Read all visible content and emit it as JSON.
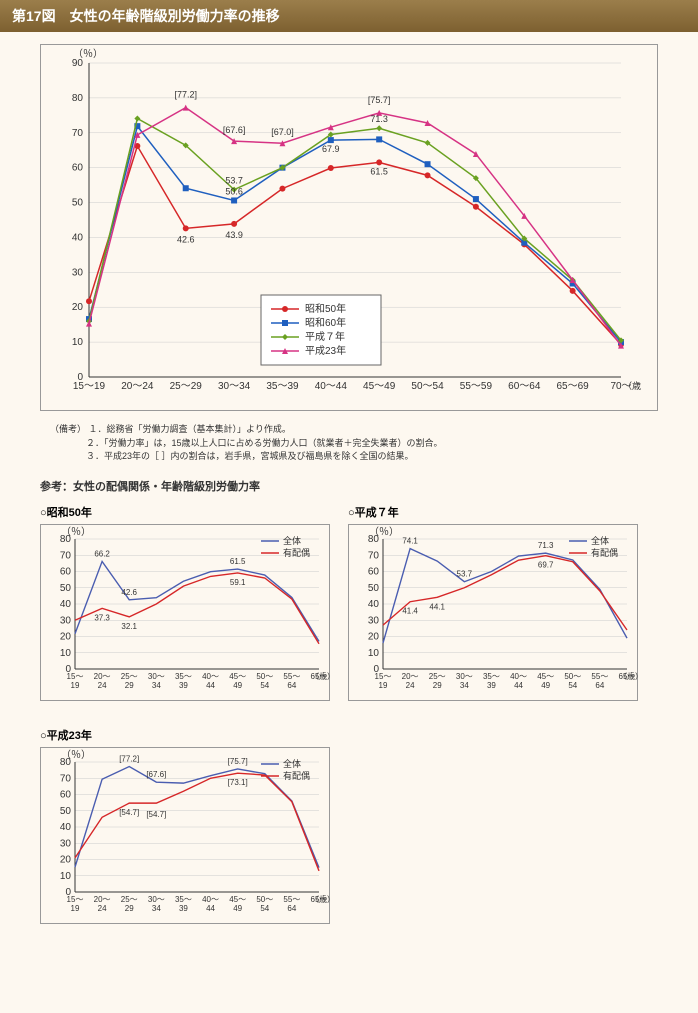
{
  "header_title": "第17図　女性の年齢階級別労働力率の推移",
  "main_chart": {
    "y_unit": "（％）",
    "x_unit": "（歳）",
    "ylim": [
      0,
      90
    ],
    "ytick_step": 10,
    "categories": [
      "15～19",
      "20～24",
      "25～29",
      "30～34",
      "35～39",
      "40～44",
      "45～49",
      "50～54",
      "55～59",
      "60～64",
      "65～69",
      "70～"
    ],
    "grid_color": "#cccccc",
    "background": "#fdf8f0",
    "series": [
      {
        "name": "昭和50年",
        "color": "#d62728",
        "marker": "circle",
        "values": [
          21.7,
          66.2,
          42.6,
          43.9,
          54.0,
          59.9,
          61.5,
          57.8,
          48.8,
          38.0,
          24.7,
          9.3
        ]
      },
      {
        "name": "昭和60年",
        "color": "#1f5fbf",
        "marker": "square",
        "values": [
          16.6,
          71.9,
          54.1,
          50.6,
          60.0,
          67.9,
          68.1,
          61.0,
          51.0,
          38.5,
          26.8,
          10.0
        ]
      },
      {
        "name": "平成７年",
        "color": "#6aa121",
        "marker": "diamond",
        "values": [
          16.0,
          74.1,
          66.4,
          53.7,
          60.0,
          69.5,
          71.3,
          67.1,
          57.0,
          39.7,
          27.8,
          10.5
        ]
      },
      {
        "name": "平成23年",
        "color": "#d63384",
        "marker": "triangle",
        "values": [
          15.3,
          69.4,
          77.2,
          67.6,
          67.0,
          71.6,
          75.7,
          72.8,
          63.9,
          46.2,
          27.8,
          9.0
        ]
      }
    ],
    "callouts": [
      {
        "cat": 2,
        "text": "[77.2]",
        "series": 3,
        "dy": -10
      },
      {
        "cat": 3,
        "text": "[67.6]",
        "series": 3,
        "dy": -8
      },
      {
        "cat": 4,
        "text": "[67.0]",
        "series": 3,
        "dy": -8
      },
      {
        "cat": 6,
        "text": "[75.7]",
        "series": 3,
        "dy": -10
      },
      {
        "cat": 2,
        "text": "42.6",
        "series": 0,
        "dy": 14
      },
      {
        "cat": 3,
        "text": "43.9",
        "series": 0,
        "dy": 14
      },
      {
        "cat": 3,
        "text": "50.6",
        "series": 1,
        "dy": -6
      },
      {
        "cat": 3,
        "text": "53.7",
        "series": 2,
        "dy": -6
      },
      {
        "cat": 5,
        "text": "67.9",
        "series": 1,
        "dy": 12
      },
      {
        "cat": 6,
        "text": "61.5",
        "series": 0,
        "dy": 12
      },
      {
        "cat": 6,
        "text": "71.3",
        "series": 2,
        "dy": -6
      }
    ]
  },
  "notes_label": "（備考）",
  "notes": [
    "１．総務省「労働力調査（基本集計）」より作成。",
    "２．「労働力率」は，15歳以上人口に占める労働力人口（就業者＋完全失業者）の割合。",
    "３．平成23年の［ ］内の割合は，岩手県，宮城県及び福島県を除く全国の結果。"
  ],
  "ref_title": "参考：女性の配偶関係・年齢階級別労働力率",
  "sub_common": {
    "y_unit": "（％）",
    "x_unit": "（歳）",
    "ylim": [
      0,
      80
    ],
    "ytick_step": 10,
    "categories": [
      "15～\n19",
      "20～\n24",
      "25～\n29",
      "30～\n34",
      "35～\n39",
      "40～\n44",
      "45～\n49",
      "50～\n54",
      "55～\n64",
      "65～"
    ],
    "grid_color": "#cccccc",
    "legend": [
      {
        "name": "全体",
        "color": "#4a5db0"
      },
      {
        "name": "有配偶",
        "color": "#d62728"
      }
    ]
  },
  "sub_charts": [
    {
      "title": "○昭和50年",
      "series": [
        {
          "name": "全体",
          "color": "#4a5db0",
          "values": [
            21.7,
            66.2,
            42.6,
            43.9,
            54.0,
            59.9,
            61.5,
            57.8,
            44.0,
            17.0
          ]
        },
        {
          "name": "有配偶",
          "color": "#d62728",
          "values": [
            30.0,
            37.3,
            32.1,
            40.0,
            51.0,
            57.0,
            59.1,
            56.0,
            43.0,
            15.5
          ]
        }
      ],
      "callouts": [
        {
          "cat": 1,
          "text": "66.2",
          "series": 0,
          "dy": -5
        },
        {
          "cat": 1,
          "text": "37.3",
          "series": 1,
          "dy": 12
        },
        {
          "cat": 2,
          "text": "42.6",
          "series": 0,
          "dy": -5
        },
        {
          "cat": 2,
          "text": "32.1",
          "series": 1,
          "dy": 12
        },
        {
          "cat": 6,
          "text": "61.5",
          "series": 0,
          "dy": -5
        },
        {
          "cat": 6,
          "text": "59.1",
          "series": 1,
          "dy": 12
        }
      ]
    },
    {
      "title": "○平成７年",
      "series": [
        {
          "name": "全体",
          "color": "#4a5db0",
          "values": [
            16.0,
            74.1,
            66.4,
            53.7,
            60.0,
            69.5,
            71.3,
            67.1,
            49.0,
            19.0
          ]
        },
        {
          "name": "有配偶",
          "color": "#d62728",
          "values": [
            27.0,
            41.4,
            44.1,
            50.0,
            58.0,
            67.0,
            69.7,
            66.0,
            48.0,
            24.0
          ]
        }
      ],
      "callouts": [
        {
          "cat": 1,
          "text": "74.1",
          "series": 0,
          "dy": -5
        },
        {
          "cat": 1,
          "text": "41.4",
          "series": 1,
          "dy": 12
        },
        {
          "cat": 3,
          "text": "53.7",
          "series": 0,
          "dy": -5
        },
        {
          "cat": 2,
          "text": "44.1",
          "series": 1,
          "dy": 12
        },
        {
          "cat": 6,
          "text": "71.3",
          "series": 0,
          "dy": -5
        },
        {
          "cat": 6,
          "text": "69.7",
          "series": 1,
          "dy": 12
        }
      ]
    },
    {
      "title": "○平成23年",
      "series": [
        {
          "name": "全体",
          "color": "#4a5db0",
          "values": [
            15.3,
            69.4,
            77.2,
            67.6,
            67.0,
            71.6,
            75.7,
            72.8,
            56.0,
            15.0
          ]
        },
        {
          "name": "有配偶",
          "color": "#d62728",
          "values": [
            21.0,
            46.0,
            54.7,
            54.7,
            62.0,
            70.0,
            73.1,
            72.0,
            55.5,
            13.0
          ]
        }
      ],
      "callouts": [
        {
          "cat": 2,
          "text": "[77.2]",
          "series": 0,
          "dy": -5
        },
        {
          "cat": 3,
          "text": "[67.6]",
          "series": 0,
          "dy": -5
        },
        {
          "cat": 6,
          "text": "[75.7]",
          "series": 0,
          "dy": -5
        },
        {
          "cat": 2,
          "text": "[54.7]",
          "series": 1,
          "dy": 12
        },
        {
          "cat": 3,
          "text": "[54.7]",
          "series": 1,
          "dy": 14
        },
        {
          "cat": 6,
          "text": "[73.1]",
          "series": 1,
          "dy": 12
        }
      ]
    }
  ]
}
